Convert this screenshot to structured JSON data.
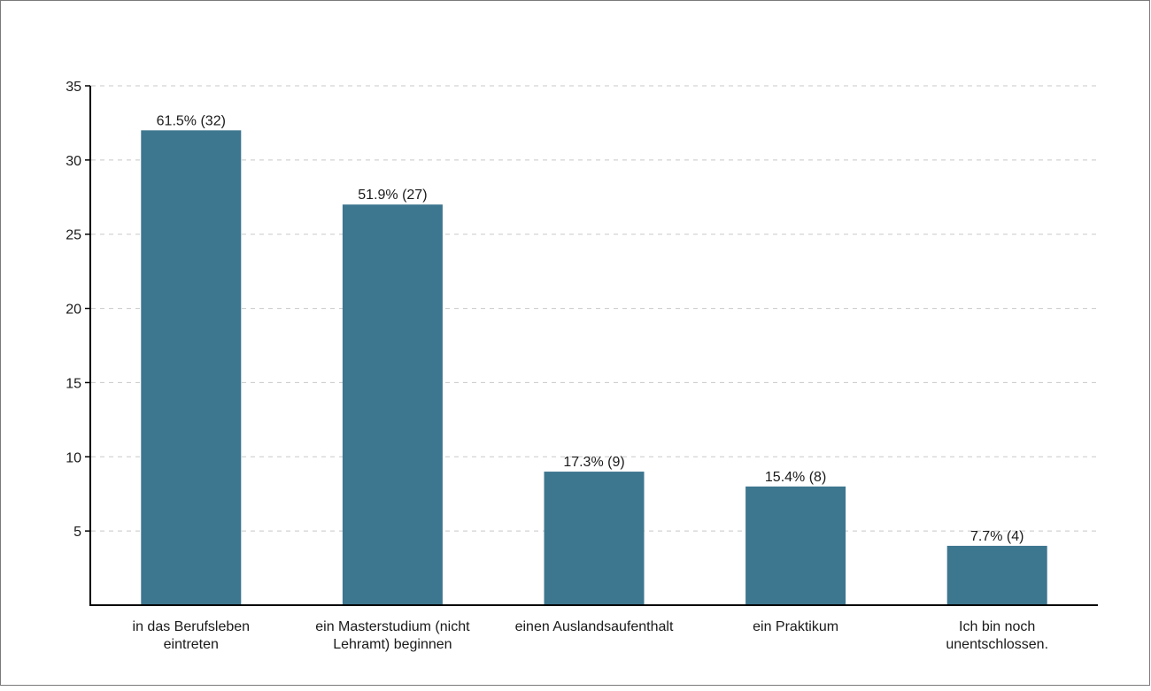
{
  "chart_data": {
    "type": "bar",
    "title": "",
    "xlabel": "",
    "ylabel": "",
    "categories": [
      [
        "in das Berufsleben",
        "eintreten"
      ],
      [
        "ein Masterstudium (nicht",
        "Lehramt) beginnen"
      ],
      [
        "einen Auslandsaufenthalt"
      ],
      [
        "ein Praktikum"
      ],
      [
        "Ich bin noch",
        "unentschlossen."
      ]
    ],
    "values": [
      32,
      27,
      9,
      8,
      4
    ],
    "data_labels": [
      "61.5% (32)",
      "51.9% (27)",
      "17.3% (9)",
      "15.4% (8)",
      "7.7% (4)"
    ],
    "ylim": [
      0,
      35
    ],
    "yticks": [
      5,
      10,
      15,
      20,
      25,
      30,
      35
    ],
    "grid": true,
    "legend": "none",
    "bar_color": "#3d768f",
    "grid_color": "#c8c8c8"
  }
}
